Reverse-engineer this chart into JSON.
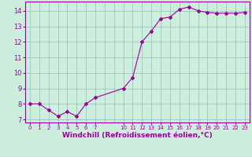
{
  "x": [
    0,
    1,
    2,
    3,
    4,
    5,
    6,
    7,
    10,
    11,
    12,
    13,
    14,
    15,
    16,
    17,
    18,
    19,
    20,
    21,
    22,
    23
  ],
  "y": [
    8.0,
    8.0,
    7.6,
    7.2,
    7.5,
    7.2,
    8.0,
    8.4,
    9.0,
    9.7,
    12.0,
    12.7,
    13.5,
    13.6,
    14.1,
    14.25,
    14.0,
    13.9,
    13.85,
    13.85,
    13.85,
    13.9
  ],
  "line_color": "#990099",
  "marker": "D",
  "marker_size": 2,
  "bg_color": "#cceedd",
  "grid_color": "#99bbbb",
  "xlabel": "Windchill (Refroidissement éolien,°C)",
  "xlabel_color": "#990099",
  "tick_color": "#990099",
  "label_color": "#990099",
  "ylim": [
    6.8,
    14.6
  ],
  "xlim": [
    -0.5,
    23.5
  ],
  "yticks": [
    7,
    8,
    9,
    10,
    11,
    12,
    13,
    14
  ],
  "xtick_positions": [
    0,
    1,
    2,
    3,
    4,
    5,
    6,
    7,
    10,
    11,
    12,
    13,
    14,
    15,
    16,
    17,
    18,
    19,
    20,
    21,
    22,
    23
  ],
  "xtick_labels": [
    "0",
    "1",
    "2",
    "3",
    "4",
    "5",
    "6",
    "7",
    "10",
    "11",
    "12",
    "13",
    "14",
    "15",
    "16",
    "17",
    "18",
    "19",
    "20",
    "21",
    "22",
    "23"
  ]
}
